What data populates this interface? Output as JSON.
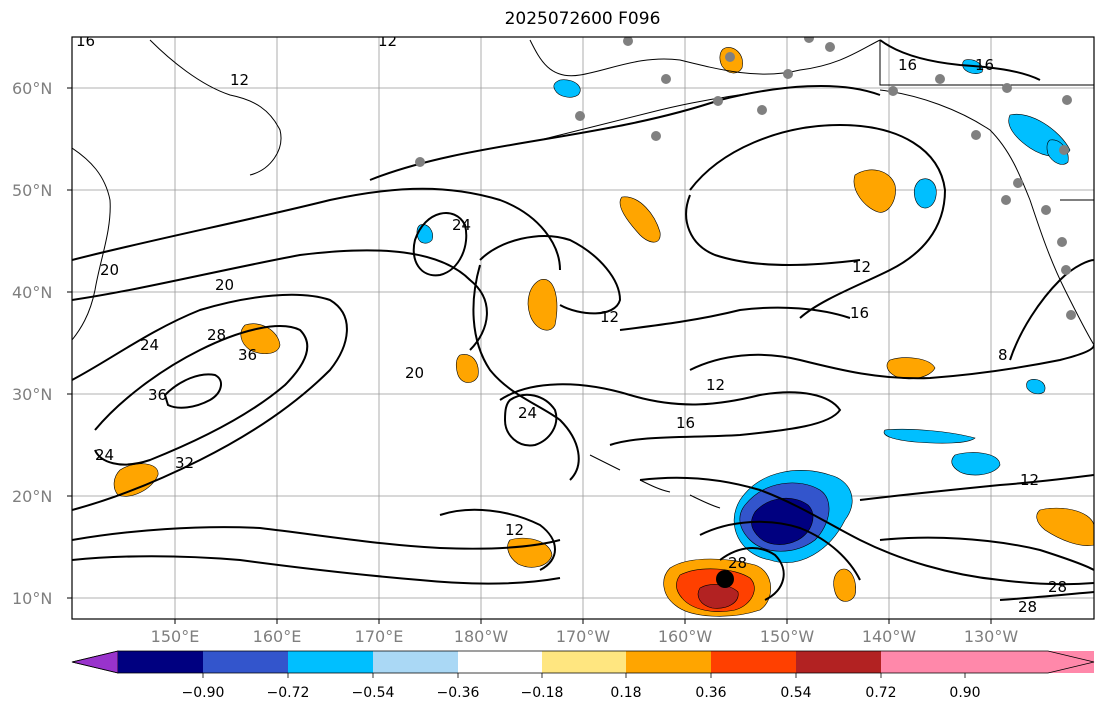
{
  "title": "2025072600 F096",
  "colors": {
    "coast": "#000000",
    "grid": "#999999",
    "stations": "#808080",
    "center_marker": "#000000"
  },
  "axes": {
    "lat_labels": [
      "60°N",
      "50°N",
      "40°N",
      "30°N",
      "20°N",
      "10°N"
    ],
    "lon_labels": [
      "150°E",
      "160°E",
      "170°E",
      "180°W",
      "170°W",
      "160°W",
      "150°W",
      "140°W",
      "130°W"
    ]
  },
  "contour_labels": [
    "12",
    "16",
    "12",
    "16",
    "16",
    "20",
    "24",
    "12",
    "12",
    "16",
    "8",
    "20",
    "28",
    "24",
    "36",
    "36",
    "20",
    "24",
    "12",
    "16",
    "24",
    "32",
    "12",
    "12",
    "28",
    "28",
    "28"
  ],
  "colorbar": {
    "colors": [
      "#9933cc",
      "#000080",
      "#3355cc",
      "#00bfff",
      "#aad8f5",
      "#ffffff",
      "#ffe680",
      "#ffa500",
      "#ff4000",
      "#b22222",
      "#ff88aa"
    ],
    "tick_labels": [
      "−0.90",
      "−0.72",
      "−0.54",
      "−0.36",
      "−0.18",
      "0.18",
      "0.36",
      "0.54",
      "0.72",
      "0.90"
    ]
  }
}
